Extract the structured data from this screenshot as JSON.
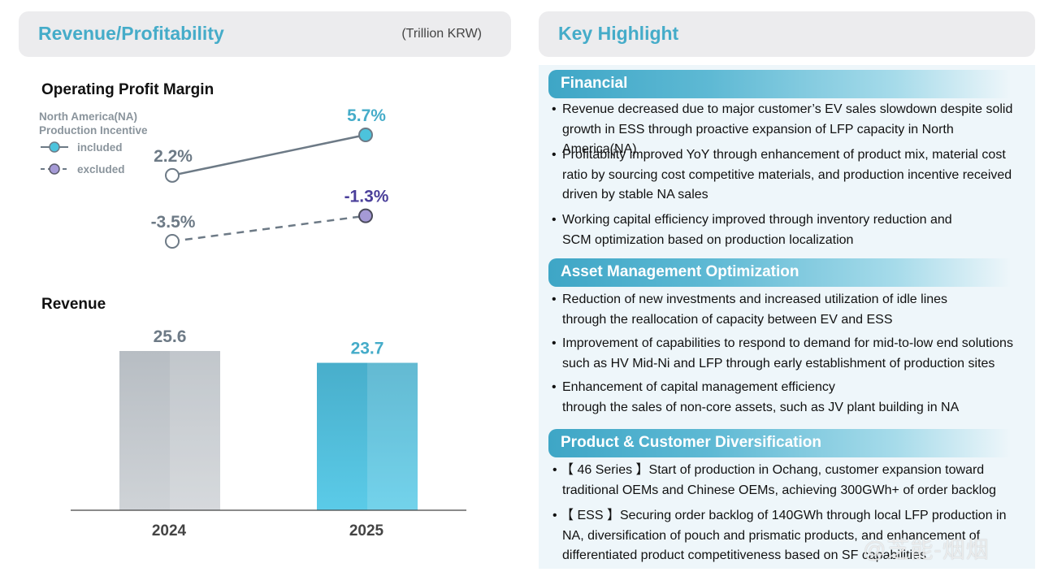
{
  "left_header": {
    "title": "Revenue/Profitability",
    "unit": "(Trillion KRW)"
  },
  "right_header": {
    "title": "Key Highlight"
  },
  "colors": {
    "accent": "#45acc9",
    "included_line": "#6d7a86",
    "included_marker": "#4cc3dc",
    "excluded_marker": "#a59ad6",
    "excluded_label": "#4a3f9a",
    "bar_2024": "#c7ccd1",
    "bar_2025": "#4fc1db"
  },
  "chart_data": [
    {
      "type": "line",
      "title": "Operating Profit Margin",
      "legend_title": [
        "North America(NA)",
        "Production Incentive"
      ],
      "categories": [
        "2024",
        "2025"
      ],
      "series": [
        {
          "name": "included",
          "values": [
            2.2,
            5.7
          ],
          "labels": [
            "2.2%",
            "5.7%"
          ],
          "style": "solid"
        },
        {
          "name": "excluded",
          "values": [
            -3.5,
            -1.3
          ],
          "labels": [
            "-3.5%",
            "-1.3%"
          ],
          "style": "dashed"
        }
      ],
      "unit": "%",
      "ylim": [
        -4.5,
        7
      ]
    },
    {
      "type": "bar",
      "title": "Revenue",
      "categories": [
        "2024",
        "2025"
      ],
      "values": [
        25.6,
        23.7
      ],
      "value_labels": [
        "25.6",
        "23.7"
      ],
      "unit": "Trillion KRW",
      "ylim": [
        0,
        30
      ]
    }
  ],
  "highlights": {
    "sections": [
      {
        "title": "Financial",
        "bullets": [
          [
            "Revenue decreased due to major customer’s EV sales slowdown despite solid",
            "growth in ESS through proactive expansion of LFP capacity in North America(NA)"
          ],
          [
            "Profitability improved YoY through enhancement of product mix, material cost",
            "ratio by sourcing cost competitive materials, and production incentive received",
            "driven by stable NA sales"
          ],
          [
            "Working capital efficiency improved through inventory reduction and",
            "SCM optimization based on production localization"
          ]
        ]
      },
      {
        "title": "Asset Management Optimization",
        "bullets": [
          [
            "Reduction of new investments and increased utilization of idle lines",
            "through the reallocation of capacity between EV and ESS"
          ],
          [
            "Improvement of capabilities to respond to demand for mid-to-low end solutions",
            "such as HV Mid-Ni and LFP through early establishment of production sites"
          ],
          [
            "Enhancement of capital management efficiency",
            "through the sales of non-core assets, such as JV plant building in NA"
          ]
        ]
      },
      {
        "title": "Product & Customer Diversification",
        "bullets": [
          [
            "• 【 46 Series 】Start of production in Ochang, customer expansion toward",
            "traditional OEMs and Chinese OEMs, achieving 300GWh+ of order backlog"
          ],
          [
            "• 【 ESS 】Securing order backlog of 140GWh through local LFP production in",
            "NA, diversification of pouch and prismatic products, and enhancement of",
            "differentiated product competitiveness based on SF capabilities"
          ]
        ]
      }
    ]
  },
  "watermark": "@芝能-烟烟"
}
